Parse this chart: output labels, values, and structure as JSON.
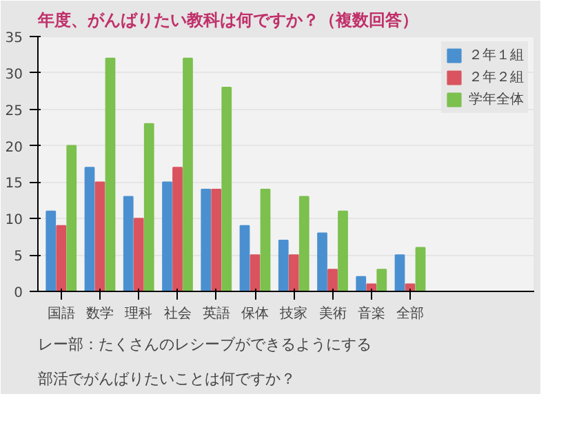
{
  "chart_data": {
    "type": "bar",
    "title": "年度、がんばりたい教科は何ですか？（複数回答）",
    "categories": [
      "国語",
      "数学",
      "理科",
      "社会",
      "英語",
      "保体",
      "技家",
      "美術",
      "音楽",
      "全部"
    ],
    "series": [
      {
        "name": "２年１組",
        "color": "#4a90d0",
        "values": [
          11,
          17,
          13,
          15,
          14,
          9,
          7,
          8,
          2,
          5
        ]
      },
      {
        "name": "２年２組",
        "color": "#d9545e",
        "values": [
          9,
          15,
          10,
          17,
          14,
          5,
          5,
          3,
          1,
          1
        ]
      },
      {
        "name": "学年全体",
        "color": "#7cc04e",
        "values": [
          20,
          32,
          23,
          32,
          28,
          14,
          13,
          11,
          3,
          6
        ]
      }
    ],
    "ylim": [
      0,
      35
    ],
    "yticks": [
      0,
      5,
      10,
      15,
      20,
      25,
      30,
      35
    ],
    "grid": "y",
    "legend": "right",
    "annotations": [
      "部活でがんばりたいことは何ですか？",
      "レー部：たくさんのレシーブができるようにする"
    ]
  }
}
